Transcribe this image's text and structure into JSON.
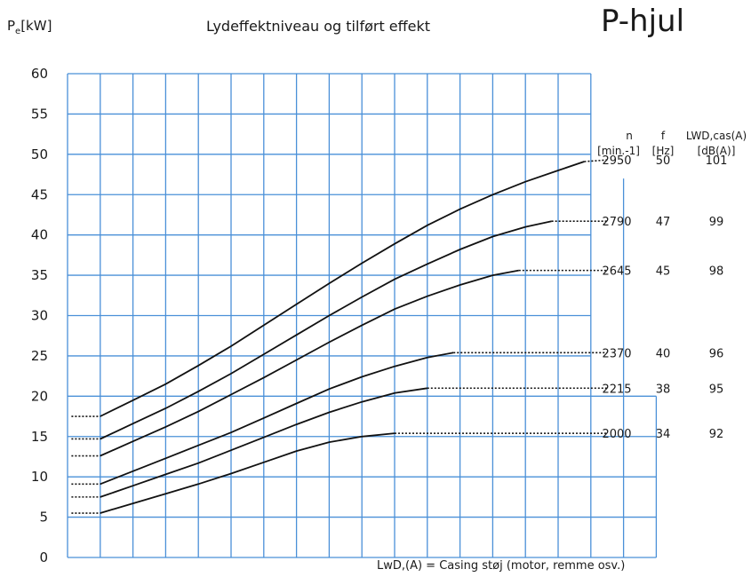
{
  "header": {
    "ylabel_main": "P",
    "ylabel_sub": "e",
    "ylabel_unit": "[kW]",
    "title": "Lydeffektniveau og tilført effekt",
    "brand": "P-hjul"
  },
  "footnote": "LwD,(A) = Casing støj (motor, remme osv.)",
  "table_headers": {
    "n": "n",
    "n_unit": "[min.-1]",
    "f": "f",
    "f_unit": "[Hz]",
    "lw": "LWD,cas(A)",
    "lw_unit": "[dB(A)]"
  },
  "colors": {
    "grid": "#4a90d8",
    "curve": "#111111"
  },
  "chart_data": {
    "type": "line",
    "ylim": [
      0,
      60
    ],
    "yticks": [
      0,
      5,
      10,
      15,
      20,
      25,
      30,
      35,
      40,
      45,
      50,
      55,
      60
    ],
    "grid": true,
    "series": [
      {
        "n": "2950",
        "f": "50",
        "lw": "101",
        "points": [
          [
            0.5,
            17.5
          ],
          [
            1.0,
            17.5
          ],
          [
            2.0,
            19.5
          ],
          [
            3.0,
            21.5
          ],
          [
            4.0,
            23.8
          ],
          [
            5.0,
            26.2
          ],
          [
            6.0,
            28.8
          ],
          [
            7.0,
            31.4
          ],
          [
            8.0,
            34.0
          ],
          [
            9.0,
            36.5
          ],
          [
            10.0,
            38.9
          ],
          [
            11.0,
            41.2
          ],
          [
            12.0,
            43.2
          ],
          [
            13.0,
            45.0
          ],
          [
            14.0,
            46.6
          ],
          [
            15.0,
            48.0
          ],
          [
            15.8,
            49.1
          ],
          [
            16.5,
            49.3
          ]
        ]
      },
      {
        "n": "2790",
        "f": "47",
        "lw": "99",
        "points": [
          [
            0.5,
            14.7
          ],
          [
            1.0,
            14.7
          ],
          [
            2.0,
            16.6
          ],
          [
            3.0,
            18.5
          ],
          [
            4.0,
            20.6
          ],
          [
            5.0,
            22.8
          ],
          [
            6.0,
            25.2
          ],
          [
            7.0,
            27.6
          ],
          [
            8.0,
            30.0
          ],
          [
            9.0,
            32.3
          ],
          [
            10.0,
            34.5
          ],
          [
            11.0,
            36.4
          ],
          [
            12.0,
            38.2
          ],
          [
            13.0,
            39.8
          ],
          [
            14.0,
            41.0
          ],
          [
            14.8,
            41.7
          ],
          [
            16.5,
            41.7
          ]
        ]
      },
      {
        "n": "2645",
        "f": "45",
        "lw": "98",
        "points": [
          [
            0.5,
            12.6
          ],
          [
            1.0,
            12.6
          ],
          [
            2.0,
            14.4
          ],
          [
            3.0,
            16.2
          ],
          [
            4.0,
            18.1
          ],
          [
            5.0,
            20.2
          ],
          [
            6.0,
            22.3
          ],
          [
            7.0,
            24.5
          ],
          [
            8.0,
            26.7
          ],
          [
            9.0,
            28.8
          ],
          [
            10.0,
            30.8
          ],
          [
            11.0,
            32.4
          ],
          [
            12.0,
            33.8
          ],
          [
            13.0,
            35.0
          ],
          [
            13.8,
            35.6
          ],
          [
            16.5,
            35.6
          ]
        ]
      },
      {
        "n": "2370",
        "f": "40",
        "lw": "96",
        "points": [
          [
            0.5,
            9.1
          ],
          [
            1.0,
            9.1
          ],
          [
            2.0,
            10.7
          ],
          [
            3.0,
            12.3
          ],
          [
            4.0,
            13.9
          ],
          [
            5.0,
            15.5
          ],
          [
            6.0,
            17.3
          ],
          [
            7.0,
            19.1
          ],
          [
            8.0,
            20.9
          ],
          [
            9.0,
            22.4
          ],
          [
            10.0,
            23.7
          ],
          [
            11.0,
            24.8
          ],
          [
            11.8,
            25.4
          ],
          [
            16.5,
            25.4
          ]
        ]
      },
      {
        "n": "2215",
        "f": "38",
        "lw": "95",
        "points": [
          [
            0.5,
            7.5
          ],
          [
            1.0,
            7.5
          ],
          [
            2.0,
            8.9
          ],
          [
            3.0,
            10.3
          ],
          [
            4.0,
            11.7
          ],
          [
            5.0,
            13.3
          ],
          [
            6.0,
            14.9
          ],
          [
            7.0,
            16.5
          ],
          [
            8.0,
            18.0
          ],
          [
            9.0,
            19.3
          ],
          [
            10.0,
            20.4
          ],
          [
            11.0,
            21.0
          ],
          [
            16.5,
            21.0
          ]
        ]
      },
      {
        "n": "2000",
        "f": "34",
        "lw": "92",
        "points": [
          [
            0.5,
            5.5
          ],
          [
            1.0,
            5.5
          ],
          [
            2.0,
            6.7
          ],
          [
            3.0,
            7.9
          ],
          [
            4.0,
            9.1
          ],
          [
            5.0,
            10.4
          ],
          [
            6.0,
            11.8
          ],
          [
            7.0,
            13.2
          ],
          [
            8.0,
            14.3
          ],
          [
            9.0,
            15.0
          ],
          [
            10.0,
            15.4
          ],
          [
            16.5,
            15.4
          ]
        ]
      }
    ]
  }
}
